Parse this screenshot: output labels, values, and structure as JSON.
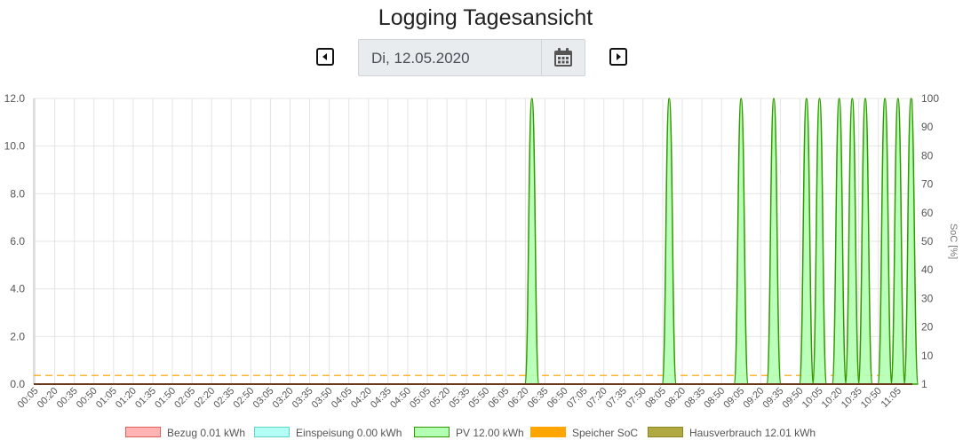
{
  "header": {
    "title": "Logging Tagesansicht"
  },
  "date_picker": {
    "value": "Di, 12.05.2020",
    "prev_icon": "caret-left-square-icon",
    "next_icon": "caret-right-square-icon",
    "calendar_icon": "calendar-icon"
  },
  "chart_data": {
    "type": "area",
    "x_tick_labels": [
      "00:05",
      "00:20",
      "00:35",
      "00:50",
      "01:05",
      "01:20",
      "01:35",
      "01:50",
      "02:05",
      "02:20",
      "02:35",
      "02:50",
      "03:05",
      "03:20",
      "03:35",
      "03:50",
      "04:05",
      "04:20",
      "04:35",
      "04:50",
      "05:05",
      "05:20",
      "05:35",
      "05:50",
      "06:05",
      "06:20",
      "06:35",
      "06:50",
      "07:05",
      "07:20",
      "07:35",
      "07:50",
      "08:05",
      "08:20",
      "08:35",
      "08:50",
      "09:05",
      "09:20",
      "09:35",
      "09:50",
      "10:05",
      "10:20",
      "10:35",
      "10:50",
      "11:05"
    ],
    "y_left": {
      "label": "",
      "range": [
        0,
        12
      ],
      "ticks": [
        "0.0",
        "2.0",
        "4.0",
        "6.0",
        "8.0",
        "10.0",
        "12.0"
      ]
    },
    "y_right": {
      "label": "SoC [%]",
      "ticks": [
        "1",
        "10",
        "20",
        "30",
        "40",
        "50",
        "60",
        "70",
        "80",
        "90",
        "100"
      ]
    },
    "series": [
      {
        "name": "Bezug 0.01 kWh",
        "color_fill": "#ffb3b3",
        "color_line": "#e06060",
        "values": []
      },
      {
        "name": "Einspeisung 0.00 kWh",
        "color_fill": "#b3fff5",
        "color_line": "#60d6c8",
        "values": []
      },
      {
        "name": "PV 12.00 kWh",
        "color_fill": "#b3ffb3",
        "color_line": "#339900",
        "peaks": [
          "06:25",
          "08:10",
          "09:05",
          "09:30",
          "09:55",
          "10:05",
          "10:20",
          "10:30",
          "10:40",
          "10:55",
          "11:05",
          "11:15"
        ],
        "peak_value": 12.0
      },
      {
        "name": "Speicher SoC",
        "color_fill": "#ffa500",
        "color_line": "#ffa500",
        "soc_value": 4
      },
      {
        "name": "Hausverbrauch 12.01 kWh",
        "color_fill": "#b0a840",
        "color_line": "#8c8520",
        "values": []
      }
    ],
    "grid": true,
    "legend_position": "bottom"
  }
}
